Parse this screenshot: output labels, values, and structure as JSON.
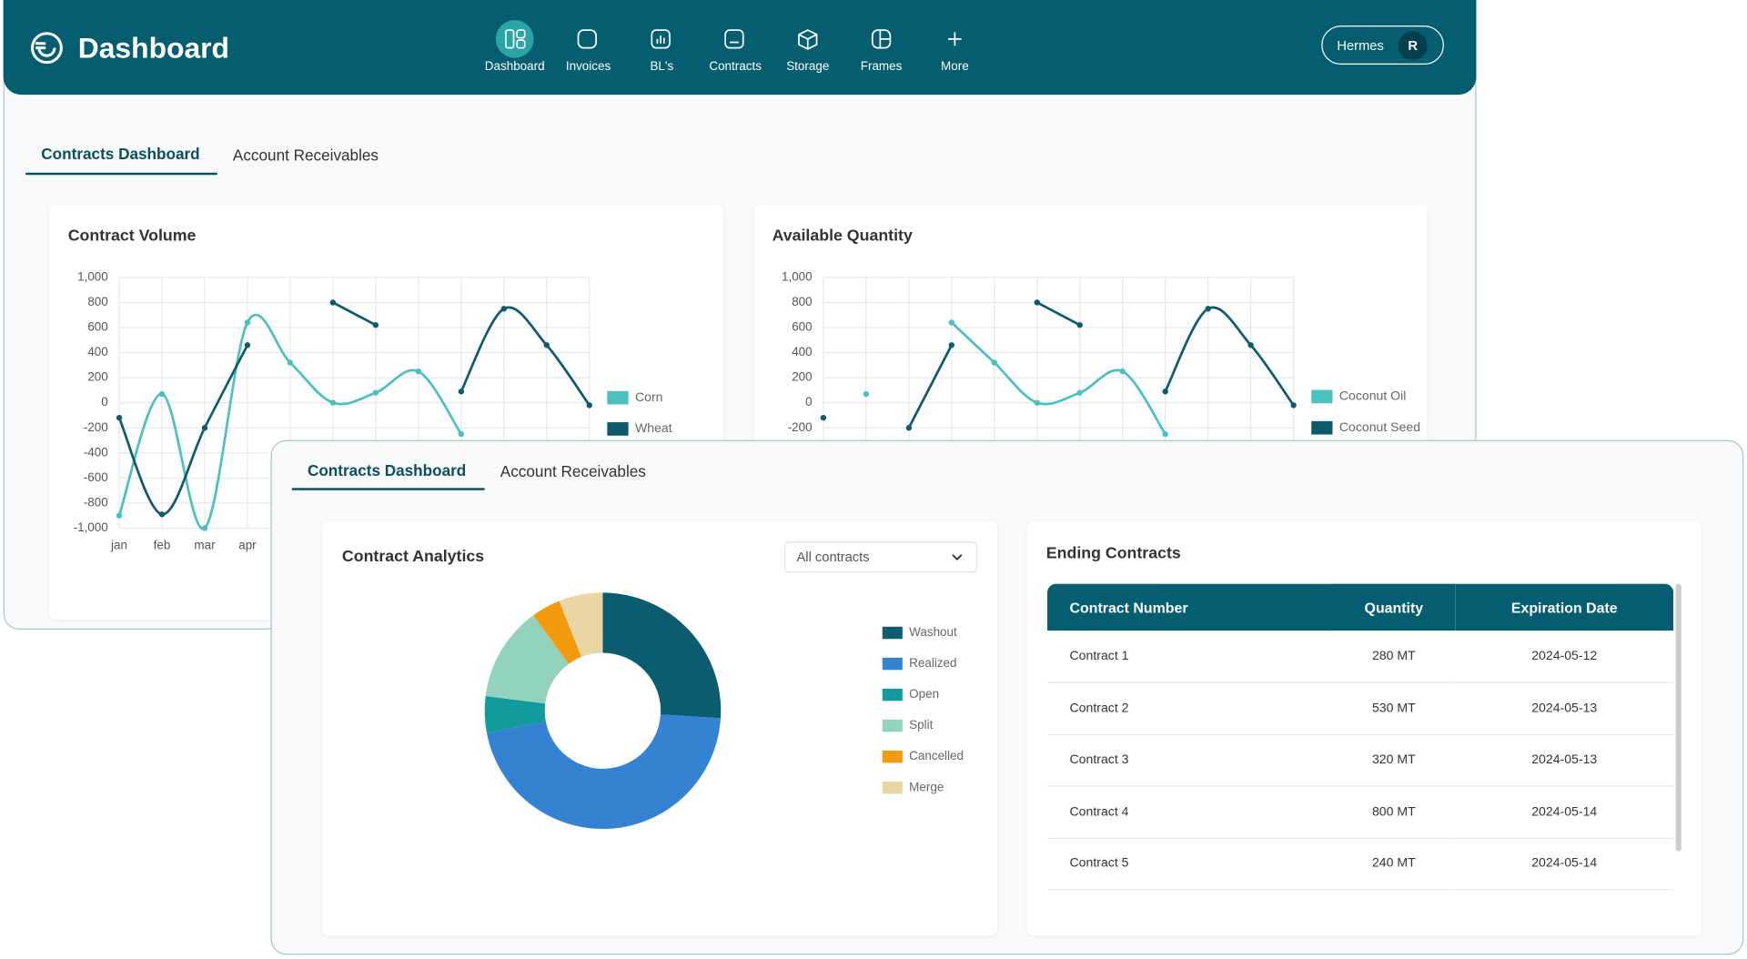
{
  "header": {
    "title": "Dashboard",
    "nav": [
      "Dashboard",
      "Invoices",
      "BL's",
      "Contracts",
      "Storage",
      "Frames",
      "More"
    ],
    "user": {
      "name": "Hermes",
      "initial": "R"
    }
  },
  "back_panel": {
    "tabs": [
      "Contracts Dashboard",
      "Account Receivables"
    ]
  },
  "front_panel": {
    "tabs": [
      "Contracts Dashboard",
      "Account Receivables"
    ],
    "analytics": {
      "dropdown": "All contracts"
    },
    "ending_contracts": {
      "title": "Ending Contracts",
      "columns": [
        "Contract Number",
        "Quantity",
        "Expiration Date"
      ],
      "rows": [
        [
          "Contract 1",
          "280 MT",
          "2024-05-12"
        ],
        [
          "Contract 2",
          "530 MT",
          "2024-05-13"
        ],
        [
          "Contract 3",
          "320 MT",
          "2024-05-13"
        ],
        [
          "Contract 4",
          "800 MT",
          "2024-05-14"
        ],
        [
          "Contract 5",
          "240 MT",
          "2024-05-14"
        ]
      ]
    }
  },
  "chart_data": [
    {
      "type": "line",
      "title": "Contract Volume",
      "categories": [
        "jan",
        "feb",
        "mar",
        "apr",
        null,
        null,
        null,
        null,
        null,
        null,
        null,
        null
      ],
      "series": [
        {
          "name": "Corn",
          "color": "#4cbfbf",
          "values": [
            -900,
            70,
            -1000,
            640,
            320,
            0,
            80,
            250,
            -250,
            null,
            null,
            null
          ]
        },
        {
          "name": "Wheat",
          "color": "#0d5a6b",
          "values": [
            -120,
            -890,
            -200,
            460,
            null,
            800,
            620,
            null,
            90,
            750,
            460,
            -20
          ]
        }
      ],
      "ylim": [
        -1000,
        1000
      ],
      "yticks": [
        {
          "value": -1000,
          "label": "-1,000"
        },
        -800,
        -600,
        -400,
        -200,
        0,
        200,
        400,
        600,
        800,
        {
          "value": 1000,
          "label": "1,000"
        }
      ],
      "grid": true
    },
    {
      "type": "line",
      "title": "Available Quantity",
      "categories": [
        null,
        null,
        null,
        null,
        null,
        null,
        null,
        null,
        null,
        null,
        null,
        null
      ],
      "series": [
        {
          "name": "Coconut Oil",
          "color": "#4cbfbf",
          "values": [
            null,
            70,
            null,
            640,
            320,
            0,
            80,
            250,
            -250,
            null,
            null,
            null
          ]
        },
        {
          "name": "Coconut Seed",
          "color": "#0d5a6b",
          "values": [
            -120,
            null,
            -200,
            460,
            null,
            800,
            620,
            null,
            90,
            750,
            460,
            -20
          ]
        }
      ],
      "ylim": [
        -1000,
        1000
      ],
      "yticks": [
        -200,
        0,
        200,
        400,
        600,
        800,
        {
          "value": 1000,
          "label": "1,000"
        }
      ],
      "grid": true
    },
    {
      "type": "pie",
      "donut": true,
      "title": "Contract Analytics",
      "categories": [
        "Washout",
        "Realized",
        "Open",
        "Split",
        "Cancelled",
        "Merge"
      ],
      "values": [
        26,
        46,
        5,
        13,
        4,
        6
      ],
      "colors": [
        "#0b5c6e",
        "#3483d3",
        "#139a9a",
        "#93d3bd",
        "#f29b0f",
        "#e9d6a4"
      ]
    }
  ]
}
